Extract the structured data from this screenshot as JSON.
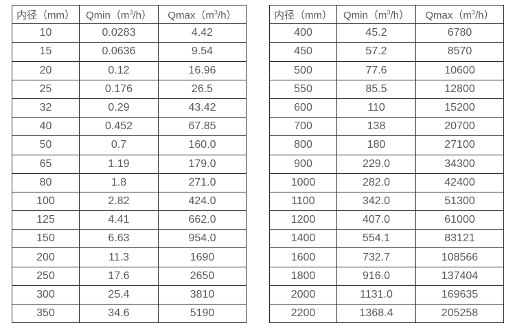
{
  "columns": {
    "diameter": "内径（mm）",
    "qmin_pre": "Qmin（m",
    "qmin_sup": "3",
    "qmin_post": "/h）",
    "qmax_pre": "Qmax（m",
    "qmax_sup": "3",
    "qmax_post": "/h）"
  },
  "left_table": {
    "rows": [
      [
        "10",
        "0.0283",
        "4.42"
      ],
      [
        "15",
        "0.0636",
        "9.54"
      ],
      [
        "20",
        "0.12",
        "16.96"
      ],
      [
        "25",
        "0.176",
        "26.5"
      ],
      [
        "32",
        "0.29",
        "43.42"
      ],
      [
        "40",
        "0.452",
        "67.85"
      ],
      [
        "50",
        "0.7",
        "160.0"
      ],
      [
        "65",
        "1.19",
        "179.0"
      ],
      [
        "80",
        "1.8",
        "271.0"
      ],
      [
        "100",
        "2.82",
        "424.0"
      ],
      [
        "125",
        "4.41",
        "662.0"
      ],
      [
        "150",
        "6.63",
        "954.0"
      ],
      [
        "200",
        "11.3",
        "1690"
      ],
      [
        "250",
        "17.6",
        "2650"
      ],
      [
        "300",
        "25.4",
        "3810"
      ],
      [
        "350",
        "34.6",
        "5190"
      ]
    ]
  },
  "right_table": {
    "rows": [
      [
        "400",
        "45.2",
        "6780"
      ],
      [
        "450",
        "57.2",
        "8570"
      ],
      [
        "500",
        "77.6",
        "10600"
      ],
      [
        "550",
        "85.5",
        "12800"
      ],
      [
        "600",
        "110",
        "15200"
      ],
      [
        "700",
        "138",
        "20700"
      ],
      [
        "800",
        "180",
        "27100"
      ],
      [
        "900",
        "229.0",
        "34300"
      ],
      [
        "1000",
        "282.0",
        "42400"
      ],
      [
        "1100",
        "342.0",
        "51300"
      ],
      [
        "1200",
        "407.0",
        "61000"
      ],
      [
        "1400",
        "554.1",
        "83121"
      ],
      [
        "1600",
        "732.7",
        "108566"
      ],
      [
        "1800",
        "916.0",
        "137404"
      ],
      [
        "2000",
        "1131.0",
        "169635"
      ],
      [
        "2200",
        "1368.4",
        "205258"
      ]
    ]
  },
  "colors": {
    "border": "#2b2b2b",
    "text": "#595959",
    "background": "#ffffff"
  }
}
